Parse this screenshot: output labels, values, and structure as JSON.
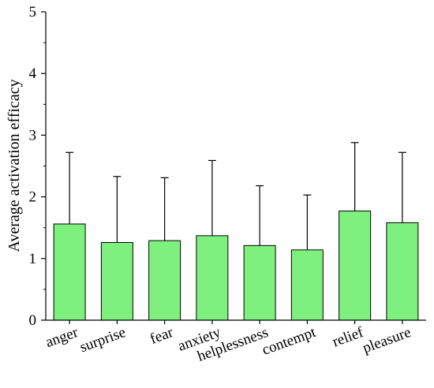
{
  "chart_data": {
    "type": "bar",
    "title": "",
    "xlabel": "",
    "ylabel": "Average activation efficacy",
    "ylim": [
      0,
      5
    ],
    "yticks": [
      0,
      1,
      2,
      3,
      4,
      5
    ],
    "categories": [
      "anger",
      "surprise",
      "fear",
      "anxiety",
      "helplessness",
      "contempt",
      "relief",
      "pleasure"
    ],
    "values": [
      1.56,
      1.26,
      1.29,
      1.37,
      1.21,
      1.14,
      1.77,
      1.58
    ],
    "error_upper": [
      1.16,
      1.07,
      1.02,
      1.22,
      0.97,
      0.89,
      1.11,
      1.14
    ],
    "grid": false,
    "legend": "none",
    "colors": {
      "bar_fill": "#7ef07e",
      "bar_stroke": "#000000",
      "axis": "#000000"
    }
  }
}
